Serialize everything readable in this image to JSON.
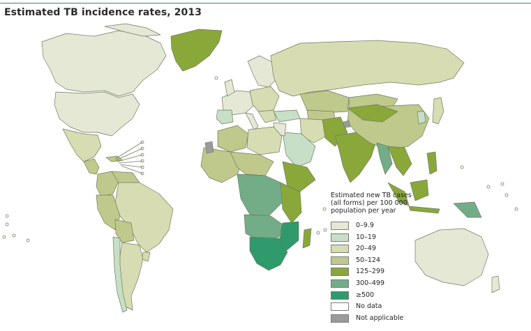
{
  "title": "Estimated TB incidence rates, 2013",
  "colors": {
    "accent": "#2f8a62",
    "border": "#6e7a5e",
    "water": "#ffffff"
  },
  "legend": {
    "title": "Estimated new TB cases (all forms) per 100 000 population per year",
    "items": [
      {
        "label": "0–9.9",
        "color": "#e6e8d6"
      },
      {
        "label": "10–19",
        "color": "#c6dfc6"
      },
      {
        "label": "20–49",
        "color": "#d7dcb2"
      },
      {
        "label": "50–124",
        "color": "#bfc98b"
      },
      {
        "label": "125–299",
        "color": "#8aa83a"
      },
      {
        "label": "300–499",
        "color": "#73ad88"
      },
      {
        "label": "≥500",
        "color": "#2f9a6b"
      },
      {
        "label": "No data",
        "color": "#ffffff"
      },
      {
        "label": "Not applicable",
        "color": "#9a9a9a"
      }
    ]
  }
}
